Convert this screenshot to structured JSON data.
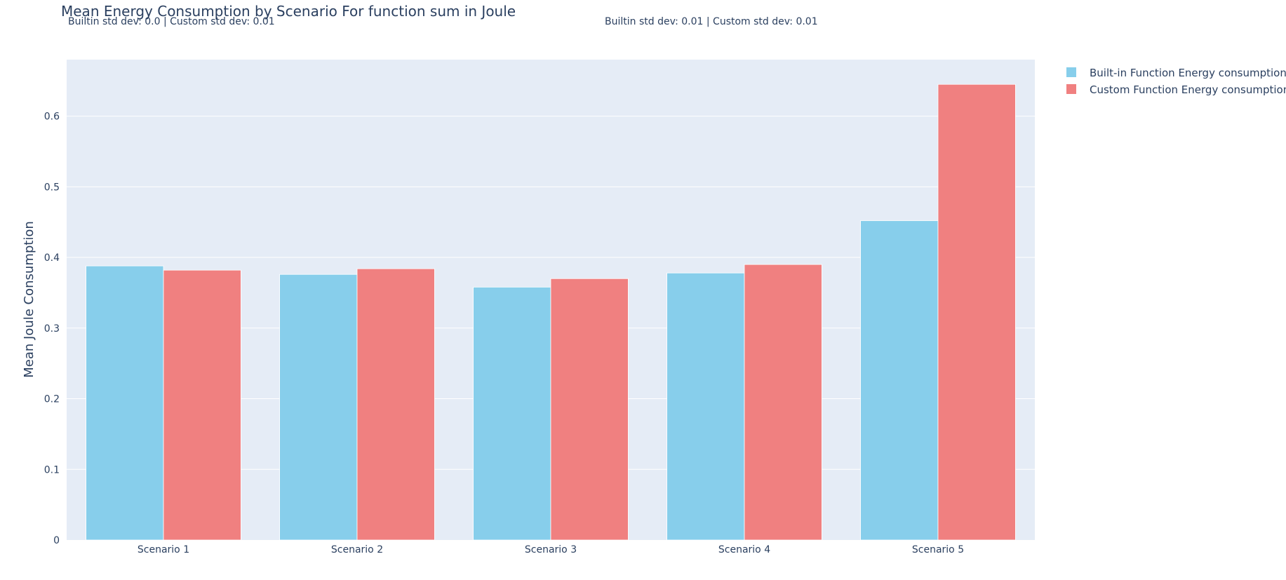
{
  "chart_data": {
    "type": "bar",
    "title": "Mean Energy Consumption by Scenario For function sum in Joule",
    "annotations": [
      "Builtin std dev: 0.0 | Custom std dev: 0.01",
      "Builtin std dev: 0.01 | Custom std dev: 0.01"
    ],
    "categories": [
      "Scenario 1",
      "Scenario 2",
      "Scenario 3",
      "Scenario 4",
      "Scenario 5"
    ],
    "series": [
      {
        "name": "Built-in Function Energy consumption",
        "color": "#87CEEB",
        "values": [
          0.388,
          0.376,
          0.358,
          0.378,
          0.452
        ]
      },
      {
        "name": "Custom Function Energy consumption",
        "color": "#F08080",
        "values": [
          0.382,
          0.384,
          0.37,
          0.39,
          0.645
        ]
      }
    ],
    "xlabel": "",
    "ylabel": "Mean Joule Consumption",
    "ylim": [
      0,
      0.68
    ],
    "yticks": [
      0,
      0.1,
      0.2,
      0.3,
      0.4,
      0.5,
      0.6
    ],
    "ytick_labels": [
      "0",
      "0.1",
      "0.2",
      "0.3",
      "0.4",
      "0.5",
      "0.6"
    ],
    "grid": true,
    "legend_position": "top-right",
    "plot_background": "#E5ECF6"
  }
}
